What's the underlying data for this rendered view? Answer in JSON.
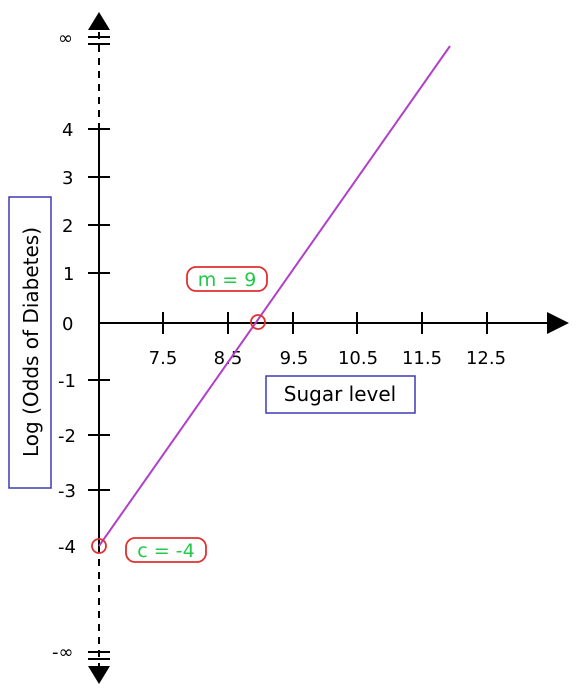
{
  "figure": {
    "y_axis_label": "Log (Odds of Diabetes)",
    "x_axis_label": "Sugar level",
    "y_tick_labels": [
      "∞",
      "4",
      "3",
      "2",
      "1",
      "0",
      "-1",
      "-2",
      "-3",
      "-4",
      "-∞"
    ],
    "x_tick_labels": [
      "7.5",
      "8.5",
      "9.5",
      "10.5",
      "11.5",
      "12.5"
    ],
    "slope_annotation": "m = 9",
    "intercept_annotation": "c = -4"
  },
  "colors": {
    "line": "#b040c8",
    "label_box": "#3c3cb4",
    "annotation_border": "#e03030",
    "annotation_text": "#22c84a",
    "axis": "#000000"
  }
}
